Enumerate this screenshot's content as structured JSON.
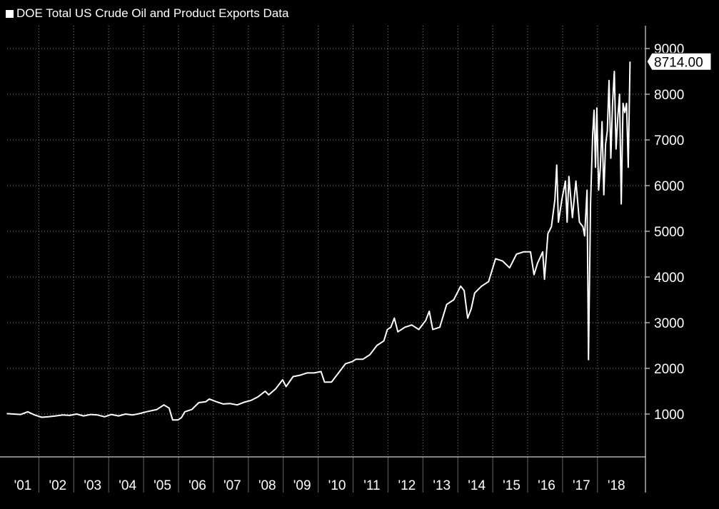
{
  "chart_data": {
    "type": "line",
    "title": "DOE Total US Crude Oil and Product Exports Data",
    "legend": [
      "DOE Total US Crude Oil and Product Exports Data"
    ],
    "legend_position": "top-left",
    "xlabel": "",
    "ylabel": "",
    "x_tick_labels": [
      "'01",
      "'02",
      "'03",
      "'04",
      "'05",
      "'06",
      "'07",
      "'08",
      "'09",
      "'10",
      "'11",
      "'12",
      "'13",
      "'14",
      "'15",
      "'16",
      "'17",
      "'18"
    ],
    "y_ticks": [
      1000,
      2000,
      3000,
      4000,
      5000,
      6000,
      7000,
      8000,
      9000
    ],
    "ylim": [
      0,
      9500
    ],
    "xlim": [
      2001.0,
      2018.85
    ],
    "grid": true,
    "last_value_label": "8714.00",
    "last_value": 8714,
    "series": [
      {
        "name": "DOE Total US Crude Oil and Product Exports Data",
        "color": "#ffffff",
        "points": [
          [
            2001.0,
            1010
          ],
          [
            2001.2,
            1000
          ],
          [
            2001.4,
            990
          ],
          [
            2001.6,
            1050
          ],
          [
            2001.8,
            980
          ],
          [
            2002.0,
            930
          ],
          [
            2002.2,
            940
          ],
          [
            2002.4,
            960
          ],
          [
            2002.6,
            980
          ],
          [
            2002.8,
            970
          ],
          [
            2003.0,
            1000
          ],
          [
            2003.2,
            960
          ],
          [
            2003.4,
            990
          ],
          [
            2003.6,
            980
          ],
          [
            2003.8,
            940
          ],
          [
            2004.0,
            990
          ],
          [
            2004.2,
            960
          ],
          [
            2004.4,
            1000
          ],
          [
            2004.6,
            980
          ],
          [
            2004.8,
            1010
          ],
          [
            2005.0,
            1050
          ],
          [
            2005.3,
            1100
          ],
          [
            2005.5,
            1200
          ],
          [
            2005.65,
            1130
          ],
          [
            2005.75,
            870
          ],
          [
            2005.9,
            870
          ],
          [
            2006.0,
            920
          ],
          [
            2006.1,
            1050
          ],
          [
            2006.3,
            1100
          ],
          [
            2006.5,
            1250
          ],
          [
            2006.7,
            1270
          ],
          [
            2006.8,
            1330
          ],
          [
            2007.0,
            1270
          ],
          [
            2007.2,
            1220
          ],
          [
            2007.4,
            1230
          ],
          [
            2007.6,
            1200
          ],
          [
            2007.8,
            1260
          ],
          [
            2008.0,
            1300
          ],
          [
            2008.2,
            1380
          ],
          [
            2008.4,
            1500
          ],
          [
            2008.5,
            1420
          ],
          [
            2008.7,
            1550
          ],
          [
            2008.9,
            1750
          ],
          [
            2009.0,
            1600
          ],
          [
            2009.2,
            1820
          ],
          [
            2009.4,
            1850
          ],
          [
            2009.6,
            1900
          ],
          [
            2009.8,
            1900
          ],
          [
            2010.0,
            1930
          ],
          [
            2010.1,
            1700
          ],
          [
            2010.3,
            1700
          ],
          [
            2010.5,
            1900
          ],
          [
            2010.7,
            2100
          ],
          [
            2010.9,
            2150
          ],
          [
            2011.0,
            2200
          ],
          [
            2011.2,
            2200
          ],
          [
            2011.4,
            2300
          ],
          [
            2011.6,
            2500
          ],
          [
            2011.8,
            2600
          ],
          [
            2011.9,
            2850
          ],
          [
            2012.0,
            2900
          ],
          [
            2012.1,
            3100
          ],
          [
            2012.2,
            2800
          ],
          [
            2012.4,
            2900
          ],
          [
            2012.6,
            2950
          ],
          [
            2012.8,
            2850
          ],
          [
            2013.0,
            3050
          ],
          [
            2013.1,
            3250
          ],
          [
            2013.2,
            2850
          ],
          [
            2013.4,
            2900
          ],
          [
            2013.6,
            3400
          ],
          [
            2013.8,
            3500
          ],
          [
            2014.0,
            3800
          ],
          [
            2014.1,
            3700
          ],
          [
            2014.2,
            3100
          ],
          [
            2014.3,
            3300
          ],
          [
            2014.4,
            3650
          ],
          [
            2014.6,
            3800
          ],
          [
            2014.8,
            3900
          ],
          [
            2015.0,
            4400
          ],
          [
            2015.2,
            4350
          ],
          [
            2015.4,
            4200
          ],
          [
            2015.6,
            4500
          ],
          [
            2015.8,
            4550
          ],
          [
            2016.0,
            4550
          ],
          [
            2016.1,
            4050
          ],
          [
            2016.2,
            4300
          ],
          [
            2016.35,
            4550
          ],
          [
            2016.4,
            3950
          ],
          [
            2016.5,
            4950
          ],
          [
            2016.6,
            5100
          ],
          [
            2016.7,
            5700
          ],
          [
            2016.75,
            6450
          ],
          [
            2016.8,
            5200
          ],
          [
            2016.9,
            5700
          ],
          [
            2017.0,
            6100
          ],
          [
            2017.05,
            5200
          ],
          [
            2017.1,
            6200
          ],
          [
            2017.2,
            5300
          ],
          [
            2017.3,
            6100
          ],
          [
            2017.4,
            5200
          ],
          [
            2017.5,
            5100
          ],
          [
            2017.55,
            4900
          ],
          [
            2017.62,
            5900
          ],
          [
            2017.66,
            2190
          ],
          [
            2017.72,
            5600
          ],
          [
            2017.78,
            7100
          ],
          [
            2017.82,
            7650
          ],
          [
            2017.86,
            6400
          ],
          [
            2017.9,
            7700
          ],
          [
            2017.95,
            5900
          ],
          [
            2018.0,
            6400
          ],
          [
            2018.05,
            7400
          ],
          [
            2018.1,
            5800
          ],
          [
            2018.15,
            6900
          ],
          [
            2018.2,
            7200
          ],
          [
            2018.25,
            8300
          ],
          [
            2018.3,
            6600
          ],
          [
            2018.35,
            7800
          ],
          [
            2018.4,
            8500
          ],
          [
            2018.45,
            6800
          ],
          [
            2018.5,
            7500
          ],
          [
            2018.55,
            8000
          ],
          [
            2018.6,
            5600
          ],
          [
            2018.65,
            7800
          ],
          [
            2018.7,
            7600
          ],
          [
            2018.75,
            7800
          ],
          [
            2018.8,
            6400
          ],
          [
            2018.85,
            8714
          ]
        ]
      }
    ]
  }
}
